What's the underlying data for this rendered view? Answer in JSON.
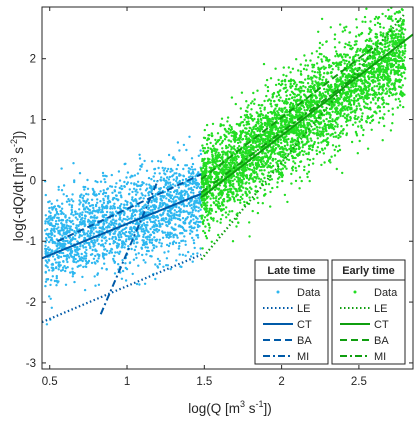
{
  "chart_data": {
    "type": "scatter",
    "xlabel": {
      "base": "log(Q [m",
      "sup1": "3",
      "mid": " s",
      "sup2": "-1",
      "end": "])"
    },
    "ylabel": {
      "base": "log(-dQ/dt [m",
      "sup1": "3",
      "mid": " s",
      "sup2": "-2",
      "end": "])"
    },
    "xlim": [
      0.45,
      2.85
    ],
    "ylim": [
      -3.1,
      2.85
    ],
    "xticks": [
      0.5,
      1,
      1.5,
      2,
      2.5
    ],
    "yticks": [
      -3,
      -2,
      -1,
      0,
      1,
      2
    ],
    "xtick_labels": [
      "0.5",
      "1",
      "1.5",
      "2",
      "2.5"
    ],
    "ytick_labels": [
      "-3",
      "-2",
      "-1",
      "0",
      "1",
      "2"
    ],
    "grid": false,
    "groups": [
      {
        "name": "Late time",
        "color": "#2db7f0",
        "line_color": "#005aa8",
        "scatter": {
          "x_range": [
            0.47,
            1.48
          ],
          "y_center_at_x0": -1.05,
          "slope": 0.72,
          "spread": 0.38
        },
        "fits": [
          {
            "label": "LE",
            "style": "dotted",
            "x": [
              0.45,
              1.48
            ],
            "y": [
              -2.33,
              -1.22
            ]
          },
          {
            "label": "CT",
            "style": "solid",
            "x": [
              0.45,
              1.48
            ],
            "y": [
              -1.28,
              -0.22
            ]
          },
          {
            "label": "BA",
            "style": "dashed",
            "x": [
              0.55,
              1.48
            ],
            "y": [
              -1.0,
              0.1
            ]
          },
          {
            "label": "MI",
            "style": "dashdot",
            "x": [
              0.83,
              1.2
            ],
            "y": [
              -2.2,
              0.0
            ]
          }
        ]
      },
      {
        "name": "Early time",
        "color": "#22dd22",
        "line_color": "#0f9e0f",
        "scatter": {
          "x_range": [
            1.48,
            2.8
          ],
          "y_center_at_x0": -0.1,
          "slope": 1.7,
          "spread": 0.4
        },
        "fits": [
          {
            "label": "LE",
            "style": "dotted",
            "x": [
              1.48,
              2.8
            ],
            "y": [
              -1.3,
              2.75
            ]
          },
          {
            "label": "CT",
            "style": "solid",
            "x": [
              1.48,
              2.85
            ],
            "y": [
              -0.28,
              2.4
            ]
          },
          {
            "label": "BA",
            "style": "dashed",
            "x": [
              1.48,
              2.6
            ],
            "y": [
              0.02,
              2.2
            ]
          },
          {
            "label": "MI",
            "style": "dashdot",
            "x": [
              1.48,
              2.5
            ],
            "y": [
              -0.2,
              1.75
            ]
          }
        ]
      }
    ],
    "legend": {
      "placement": "bottom-right",
      "entries": [
        "Data",
        "LE",
        "CT",
        "BA",
        "MI"
      ],
      "titles": [
        "Late time",
        "Early time"
      ]
    }
  }
}
